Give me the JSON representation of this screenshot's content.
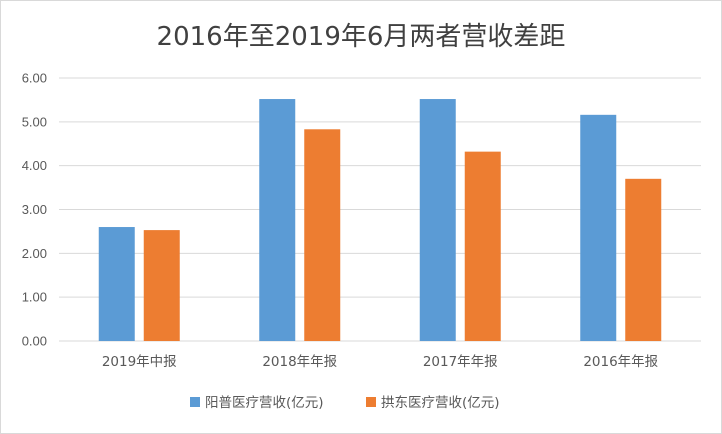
{
  "chart_data": {
    "type": "bar",
    "title": "2016年至2019年6月两者营收差距",
    "xlabel": "",
    "ylabel": "",
    "categories": [
      "2019年中报",
      "2018年年报",
      "2017年年报",
      "2016年年报"
    ],
    "series": [
      {
        "name": "阳普医疗营收(亿元)",
        "color": "#5b9bd5",
        "values": [
          2.6,
          5.52,
          5.52,
          5.16
        ]
      },
      {
        "name": "拱东医疗营收(亿元)",
        "color": "#ed7d31",
        "values": [
          2.53,
          4.83,
          4.32,
          3.7
        ]
      }
    ],
    "ylim": [
      0,
      6
    ],
    "yticks": [
      "0.00",
      "1.00",
      "2.00",
      "3.00",
      "4.00",
      "5.00",
      "6.00"
    ],
    "grid": true,
    "legend_position": "bottom"
  }
}
